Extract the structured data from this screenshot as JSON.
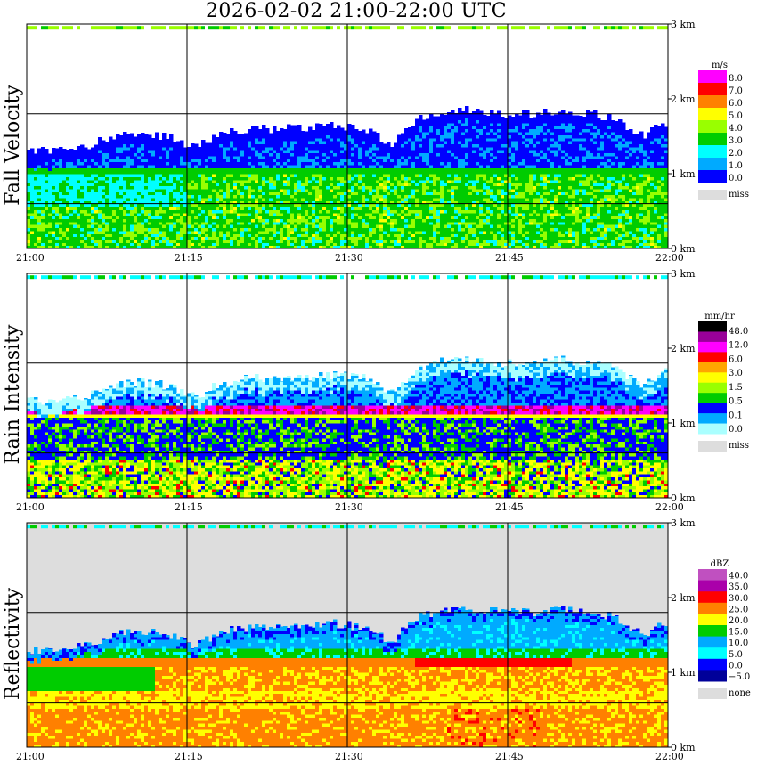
{
  "title": "2026-02-02   21:00-22:00 UTC",
  "x_ticks": [
    "21:00",
    "21:15",
    "21:30",
    "21:45",
    "22:00"
  ],
  "y_ticks": [
    "0 km",
    "1 km",
    "2 km",
    "3 km"
  ],
  "chart_data": [
    {
      "type": "heatmap",
      "title": "",
      "ylabel": "Fall Velocity",
      "xlabel": "",
      "x_range": [
        "21:00",
        "22:00"
      ],
      "y_range_km": [
        0,
        3
      ],
      "colorbar_unit": "m/s",
      "colorbar_labels": [
        "8.0",
        "7.0",
        "6.0",
        "5.0",
        "4.0",
        "3.0",
        "2.0",
        "1.0",
        "0.0"
      ],
      "colorbar_colors": [
        "#ff00ff",
        "#ff0000",
        "#ff8000",
        "#ffff00",
        "#99ff00",
        "#00cc00",
        "#00ffff",
        "#00aaff",
        "#0000ff"
      ],
      "missing_label": "miss",
      "missing_color": "#dddddd",
      "background_color": "#ffffff",
      "cloud_top_km": [
        1.3,
        1.3,
        1.35,
        1.5,
        1.55,
        1.5,
        1.35,
        1.55,
        1.6,
        1.6,
        1.6,
        1.65,
        1.6,
        1.4,
        1.75,
        1.85,
        1.85,
        1.8,
        1.8,
        1.85,
        1.8,
        1.75,
        1.5,
        1.7
      ],
      "melting_layer_km": 1.05,
      "grid": true
    },
    {
      "type": "heatmap",
      "title": "",
      "ylabel": "Rain Intensity",
      "xlabel": "",
      "x_range": [
        "21:00",
        "22:00"
      ],
      "y_range_km": [
        0,
        3
      ],
      "colorbar_unit": "mm/hr",
      "colorbar_labels": [
        "48.0",
        "12.0",
        "6.0",
        "3.0",
        "1.5",
        "0.5",
        "0.1",
        "0.0"
      ],
      "colorbar_colors": [
        "#000000",
        "#990099",
        "#ff00ff",
        "#ff0000",
        "#ffa500",
        "#ffff00",
        "#99ff00",
        "#00cc00",
        "#0000ff",
        "#00aaff",
        "#aaffff"
      ],
      "missing_label": "miss",
      "missing_color": "#dddddd",
      "background_color": "#ffffff",
      "cloud_top_km": [
        1.3,
        1.3,
        1.35,
        1.5,
        1.55,
        1.5,
        1.35,
        1.55,
        1.6,
        1.6,
        1.6,
        1.65,
        1.6,
        1.4,
        1.75,
        1.85,
        1.85,
        1.8,
        1.8,
        1.85,
        1.8,
        1.75,
        1.5,
        1.7
      ],
      "melting_layer_km": 1.15,
      "grid": true
    },
    {
      "type": "heatmap",
      "title": "",
      "ylabel": "Reflectivity",
      "xlabel": "",
      "x_range": [
        "21:00",
        "22:00"
      ],
      "y_range_km": [
        0,
        3
      ],
      "colorbar_unit": "dBZ",
      "colorbar_labels": [
        "40.0",
        "35.0",
        "30.0",
        "25.0",
        "20.0",
        "15.0",
        "10.0",
        "5.0",
        "0.0",
        "−5.0"
      ],
      "colorbar_colors": [
        "#c050c0",
        "#aa00aa",
        "#ff0000",
        "#ff8000",
        "#ffff00",
        "#00cc00",
        "#00aaff",
        "#00ffff",
        "#0000ff",
        "#000099"
      ],
      "missing_label": "none",
      "missing_color": "#dddddd",
      "background_color": "#dddddd",
      "cloud_top_km": [
        1.3,
        1.3,
        1.35,
        1.5,
        1.55,
        1.5,
        1.35,
        1.55,
        1.6,
        1.6,
        1.6,
        1.65,
        1.6,
        1.4,
        1.75,
        1.85,
        1.85,
        1.8,
        1.8,
        1.85,
        1.8,
        1.75,
        1.5,
        1.7
      ],
      "melting_layer_km": 1.2,
      "grid": true
    }
  ]
}
